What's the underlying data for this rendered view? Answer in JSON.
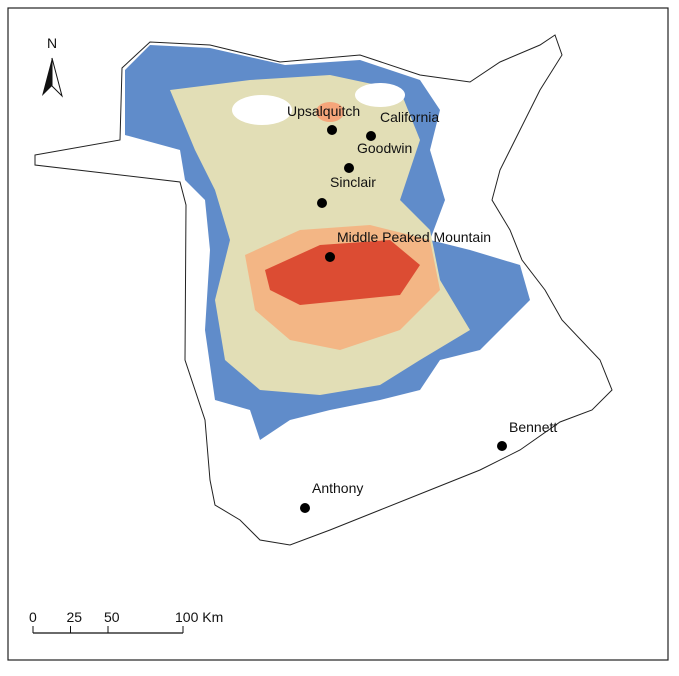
{
  "north_label": "N",
  "places": [
    "Upsalquitch",
    "California",
    "Goodwin",
    "Sinclair",
    "Middle Peaked Mountain",
    "Bennett",
    "Anthony"
  ],
  "scale_bar": {
    "ticks": [
      0,
      25,
      50,
      {
        "value": 100,
        "label": "100 Km"
      }
    ]
  }
}
